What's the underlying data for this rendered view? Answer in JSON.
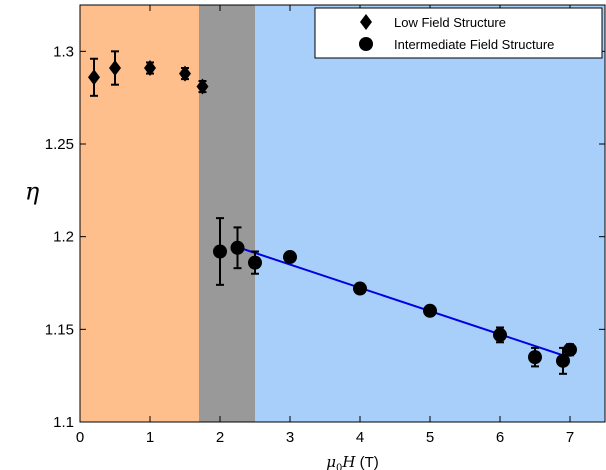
{
  "chart_data": {
    "type": "scatter",
    "xlabel": {
      "symbol": "μ",
      "sub": "0",
      "var": "H",
      "unit": " (T)"
    },
    "ylabel": "η",
    "xlim": [
      0,
      7.5
    ],
    "ylim": [
      1.1,
      1.325
    ],
    "xticks": [
      "0",
      "1",
      "2",
      "3",
      "4",
      "5",
      "6",
      "7"
    ],
    "xtick_values": [
      0,
      1,
      2,
      3,
      4,
      5,
      6,
      7
    ],
    "yticks": [
      "1.1",
      "1.15",
      "1.2",
      "1.25",
      "1.3"
    ],
    "ytick_values": [
      1.1,
      1.15,
      1.2,
      1.25,
      1.3
    ],
    "regions": [
      {
        "x0": 0,
        "x1": 1.7,
        "color": "#ffbf8c"
      },
      {
        "x0": 1.7,
        "x1": 2.5,
        "color": "#999999"
      },
      {
        "x0": 2.5,
        "x1": 7.5,
        "color": "#a8cffa"
      }
    ],
    "series": [
      {
        "name": "Low Field Structure",
        "marker": "diamond",
        "points": [
          {
            "x": 0.2,
            "y": 1.286,
            "err": 0.01
          },
          {
            "x": 0.5,
            "y": 1.291,
            "err": 0.009
          },
          {
            "x": 1.0,
            "y": 1.291,
            "err": 0.003
          },
          {
            "x": 1.5,
            "y": 1.288,
            "err": 0.003
          },
          {
            "x": 1.75,
            "y": 1.281,
            "err": 0.003
          }
        ]
      },
      {
        "name": "Intermediate Field Structure",
        "marker": "circle",
        "points": [
          {
            "x": 2.0,
            "y": 1.192,
            "err": 0.018
          },
          {
            "x": 2.25,
            "y": 1.194,
            "err": 0.011
          },
          {
            "x": 2.5,
            "y": 1.186,
            "err": 0.006
          },
          {
            "x": 3.0,
            "y": 1.189,
            "err": 0.002
          },
          {
            "x": 4.0,
            "y": 1.172,
            "err": 0.002
          },
          {
            "x": 5.0,
            "y": 1.16,
            "err": 0.002
          },
          {
            "x": 6.0,
            "y": 1.147,
            "err": 0.004
          },
          {
            "x": 6.5,
            "y": 1.135,
            "err": 0.005
          },
          {
            "x": 6.9,
            "y": 1.133,
            "err": 0.007
          },
          {
            "x": 7.0,
            "y": 1.139,
            "err": 0.003
          }
        ]
      }
    ],
    "fit_line": {
      "x0": 2.2,
      "y0": 1.195,
      "x1": 6.9,
      "y1": 1.136,
      "color": "#0000e0"
    },
    "legend": {
      "position": "top-right"
    }
  }
}
